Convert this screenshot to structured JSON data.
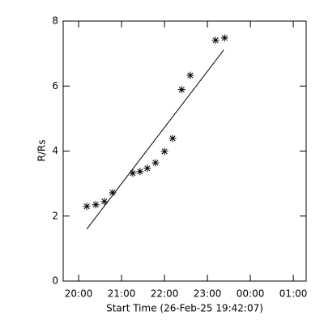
{
  "chart_data": {
    "type": "scatter",
    "xlabel": "Start Time (26-Feb-25 19:42:07)",
    "ylabel": "R/Rs",
    "xlim": [
      19.64,
      25.3
    ],
    "xticks": [
      {
        "value": 20,
        "label": "20:00"
      },
      {
        "value": 21,
        "label": "21:00"
      },
      {
        "value": 22,
        "label": "22:00"
      },
      {
        "value": 23,
        "label": "23:00"
      },
      {
        "value": 24,
        "label": "00:00"
      },
      {
        "value": 25,
        "label": "01:00"
      }
    ],
    "ylim": [
      0,
      8
    ],
    "yticks": [
      0,
      2,
      4,
      6,
      8
    ],
    "color": "#000000",
    "x": [
      20.19,
      20.4,
      20.6,
      20.79,
      21.26,
      21.43,
      21.6,
      21.79,
      22.0,
      22.19,
      22.4,
      22.6,
      23.19,
      23.4
    ],
    "values": [
      2.3,
      2.35,
      2.45,
      2.72,
      3.32,
      3.37,
      3.47,
      3.64,
      3.99,
      4.39,
      5.89,
      6.33,
      7.41,
      7.48
    ],
    "fit": {
      "type": "line",
      "x": [
        20.19,
        23.38
      ],
      "values": [
        1.6,
        7.11
      ]
    }
  }
}
